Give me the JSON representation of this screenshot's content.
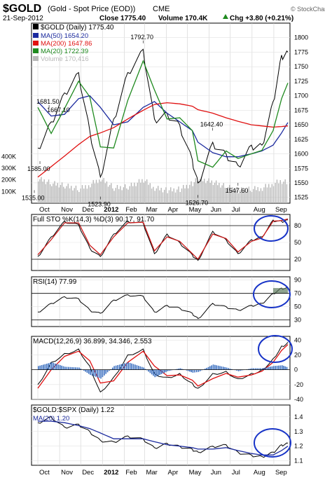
{
  "header": {
    "symbol": "$GOLD",
    "name": "(Gold - Spot Price (EOD))",
    "exchange": "CME",
    "date": "21-Sep-2012",
    "close": "Close 1775.40",
    "volume": "Volume 170.4K",
    "change": "Chg +3.80 (+0.21%)",
    "change_arrow": "up-triangle-icon",
    "credit": "© StockCharts.com"
  },
  "colors": {
    "price": "#000000",
    "ma50": "#1b2a9e",
    "ma200": "#e01010",
    "ma20": "#1f8a1f",
    "volume": "#b8b8b8",
    "highlight": "#1733c7",
    "sto_d": "#cc1a1a",
    "rsi_fill": "#5e7a5e",
    "macd_hist": "#3a6fc0"
  },
  "x_axis": {
    "months": [
      "Oct",
      "Nov",
      "Dec",
      "2012",
      "Feb",
      "Mar",
      "Apr",
      "May",
      "Jun",
      "Jul",
      "Aug",
      "Sep"
    ]
  },
  "chart_data": [
    {
      "type": "line",
      "panel": "price",
      "title": "$GOLD (Daily) 1775.40",
      "legend": [
        {
          "label": "MA(50) 1654.20",
          "color": "#1b2a9e"
        },
        {
          "label": "MA(200) 1647.86",
          "color": "#e01010"
        },
        {
          "label": "MA(20) 1722.39",
          "color": "#1f8a1f"
        },
        {
          "label": "Volume 170,416",
          "color": "#b8b8b8"
        }
      ],
      "ylim": [
        1515,
        1825
      ],
      "y_ticks": [
        "1800",
        "1775",
        "1750",
        "1725",
        "1700",
        "1675",
        "1650",
        "1625",
        "1600",
        "1575",
        "1550",
        "1525"
      ],
      "volume_ticks": [
        "400K",
        "300K",
        "200K",
        "100K"
      ],
      "annotations": [
        {
          "text": "1792.70",
          "x": "2012-02-28",
          "y": 1792.7
        },
        {
          "text": "1681.50",
          "x": "2011-10-17",
          "y": 1681.5
        },
        {
          "text": "1667.10",
          "x": "2011-11-01",
          "y": 1667.1
        },
        {
          "text": "1642.40",
          "x": "2012-06-06",
          "y": 1642.4
        },
        {
          "text": "1585.00",
          "x": "2011-10-04",
          "y": 1585.0
        },
        {
          "text": "1535.00",
          "x": "2011-09-26",
          "y": 1535.0
        },
        {
          "text": "1523.90",
          "x": "2011-12-29",
          "y": 1523.9
        },
        {
          "text": "1526.70",
          "x": "2012-05-16",
          "y": 1526.7
        },
        {
          "text": "1547.60",
          "x": "2012-07-12",
          "y": 1547.6
        }
      ],
      "x": [
        "2011-10-01",
        "2011-10-20",
        "2011-11-08",
        "2011-11-28",
        "2011-12-14",
        "2011-12-29",
        "2012-01-17",
        "2012-02-06",
        "2012-02-28",
        "2012-03-15",
        "2012-04-02",
        "2012-04-20",
        "2012-05-08",
        "2012-05-16",
        "2012-06-06",
        "2012-06-25",
        "2012-07-12",
        "2012-07-31",
        "2012-08-15",
        "2012-08-31",
        "2012-09-12",
        "2012-09-21"
      ],
      "series": [
        {
          "name": "$GOLD",
          "values": [
            1610,
            1655,
            1705,
            1740,
            1640,
            1560,
            1660,
            1740,
            1780,
            1660,
            1670,
            1650,
            1590,
            1550,
            1620,
            1600,
            1580,
            1615,
            1615,
            1690,
            1770,
            1775
          ]
        },
        {
          "name": "MA(50)",
          "values": [
            1690,
            1665,
            1668,
            1695,
            1700,
            1680,
            1650,
            1655,
            1680,
            1690,
            1670,
            1655,
            1640,
            1620,
            1602,
            1595,
            1595,
            1600,
            1605,
            1615,
            1636,
            1654
          ]
        },
        {
          "name": "MA(200)",
          "values": [
            1560,
            1578,
            1596,
            1616,
            1630,
            1636,
            1645,
            1660,
            1675,
            1685,
            1688,
            1686,
            1682,
            1676,
            1670,
            1662,
            1656,
            1650,
            1648,
            1646,
            1647,
            1648
          ]
        },
        {
          "name": "MA(20)",
          "values": [
            1680,
            1635,
            1678,
            1725,
            1698,
            1612,
            1610,
            1692,
            1760,
            1710,
            1660,
            1662,
            1640,
            1588,
            1577,
            1605,
            1592,
            1600,
            1606,
            1640,
            1695,
            1722
          ]
        }
      ],
      "volume": [
        210,
        170,
        150,
        120,
        160,
        210,
        130,
        140,
        200,
        130,
        110,
        120,
        170,
        210,
        180,
        140,
        110,
        120,
        130,
        170,
        190,
        170
      ]
    },
    {
      "type": "line",
      "panel": "stochastic",
      "title": "Full STO %K(14,3) %D(3) 90.17, 91.70",
      "ylim": [
        0,
        100
      ],
      "y_ticks": [
        "80",
        "50",
        "20"
      ],
      "series": [
        {
          "name": "%K",
          "values": [
            25,
            60,
            88,
            82,
            40,
            25,
            65,
            88,
            85,
            30,
            65,
            50,
            28,
            18,
            70,
            55,
            30,
            55,
            60,
            90,
            88,
            90
          ]
        },
        {
          "name": "%D",
          "values": [
            28,
            55,
            85,
            85,
            45,
            28,
            60,
            85,
            86,
            35,
            60,
            52,
            30,
            20,
            65,
            57,
            33,
            52,
            58,
            88,
            89,
            92
          ]
        }
      ]
    },
    {
      "type": "area",
      "panel": "rsi",
      "title": "RSI(14) 77.99",
      "ylim": [
        20,
        95
      ],
      "y_ticks": [
        "90",
        "70",
        "50",
        "30"
      ],
      "series": [
        {
          "name": "RSI(14)",
          "values": [
            42,
            55,
            65,
            62,
            45,
            40,
            60,
            68,
            66,
            42,
            52,
            48,
            40,
            32,
            55,
            50,
            45,
            52,
            55,
            70,
            78,
            78
          ]
        }
      ]
    },
    {
      "type": "line",
      "panel": "macd",
      "title": "MACD(12,26,9) 36.899, 34.346, 2.553",
      "ylim": [
        -40,
        45
      ],
      "y_ticks": [
        "40",
        "20",
        "0",
        "-20",
        "-40"
      ],
      "series": [
        {
          "name": "MACD(12,26,9)",
          "values": [
            -20,
            10,
            22,
            28,
            5,
            -30,
            -10,
            20,
            28,
            -5,
            -10,
            -5,
            -18,
            -25,
            -5,
            -2,
            -12,
            -5,
            0,
            15,
            32,
            37
          ]
        },
        {
          "name": "Signal",
          "values": [
            -25,
            0,
            18,
            25,
            12,
            -18,
            -15,
            10,
            25,
            5,
            -8,
            -7,
            -14,
            -22,
            -12,
            -5,
            -10,
            -7,
            -2,
            10,
            26,
            34
          ]
        },
        {
          "name": "Histogram",
          "values": [
            5,
            10,
            4,
            3,
            -7,
            -12,
            5,
            10,
            3,
            -10,
            -2,
            2,
            -4,
            -3,
            7,
            3,
            -2,
            2,
            2,
            5,
            6,
            3
          ]
        }
      ]
    },
    {
      "type": "line",
      "panel": "ratio",
      "title": "$GOLD:$SPX (Daily) 1.22",
      "ylim": [
        1.07,
        1.48
      ],
      "y_ticks": [
        "1.4",
        "1.3",
        "1.2",
        "1.1"
      ],
      "series": [
        {
          "name": "$GOLD:$SPX",
          "values": [
            1.36,
            1.4,
            1.33,
            1.35,
            1.3,
            1.24,
            1.23,
            1.27,
            1.25,
            1.19,
            1.22,
            1.2,
            1.18,
            1.16,
            1.2,
            1.21,
            1.16,
            1.14,
            1.13,
            1.16,
            1.21,
            1.22
          ]
        },
        {
          "name": "MA(20) 1.20",
          "values": [
            1.37,
            1.37,
            1.36,
            1.34,
            1.32,
            1.29,
            1.25,
            1.25,
            1.25,
            1.23,
            1.21,
            1.2,
            1.19,
            1.18,
            1.18,
            1.19,
            1.17,
            1.15,
            1.14,
            1.14,
            1.17,
            1.2
          ]
        }
      ]
    }
  ]
}
